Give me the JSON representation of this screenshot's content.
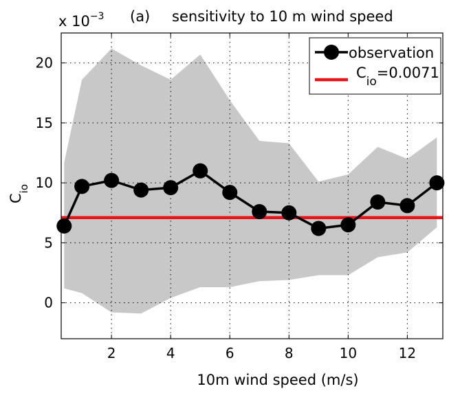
{
  "chart_data": {
    "type": "line",
    "title": "sensitivity to 10 m wind speed",
    "panel_label": "(a)",
    "scale_multiplier": {
      "base": "x 10",
      "exponent": "−3"
    },
    "xlabel": "10m wind speed  (m/s)",
    "ylabel": {
      "main": "C",
      "sub": "io"
    },
    "xlim": [
      0.3,
      13.2
    ],
    "ylim": [
      -3,
      22.5
    ],
    "x_ticks": [
      2,
      4,
      6,
      8,
      10,
      12
    ],
    "y_ticks": [
      0,
      5,
      10,
      15,
      20
    ],
    "grid": true,
    "grid_style": "dotted",
    "legend_position": "top-right",
    "x": [
      0.4,
      1.0,
      2.0,
      3.0,
      4.0,
      5.0,
      6.0,
      7.0,
      8.0,
      9.0,
      10.0,
      11.0,
      12.0,
      13.0
    ],
    "band": {
      "upper": [
        11.7,
        18.6,
        21.2,
        19.8,
        18.6,
        20.7,
        16.9,
        13.5,
        13.3,
        10.1,
        10.7,
        13.0,
        12.0,
        13.8
      ],
      "lower": [
        1.2,
        0.8,
        -0.8,
        -0.9,
        0.4,
        1.3,
        1.3,
        1.8,
        1.9,
        2.3,
        2.3,
        3.8,
        4.2,
        6.3
      ],
      "color": "#c8c8c8"
    },
    "series": [
      {
        "name": "observation",
        "values": [
          6.4,
          9.7,
          10.2,
          9.4,
          9.6,
          11.0,
          9.2,
          7.6,
          7.5,
          6.2,
          6.5,
          8.4,
          8.1,
          10.0
        ],
        "color": "#000000",
        "marker": "circle"
      }
    ],
    "reference_line": {
      "legend_main": "C",
      "legend_sub": "io",
      "legend_value": "=0.0071",
      "value": 7.1,
      "color": "#e8141a"
    }
  }
}
